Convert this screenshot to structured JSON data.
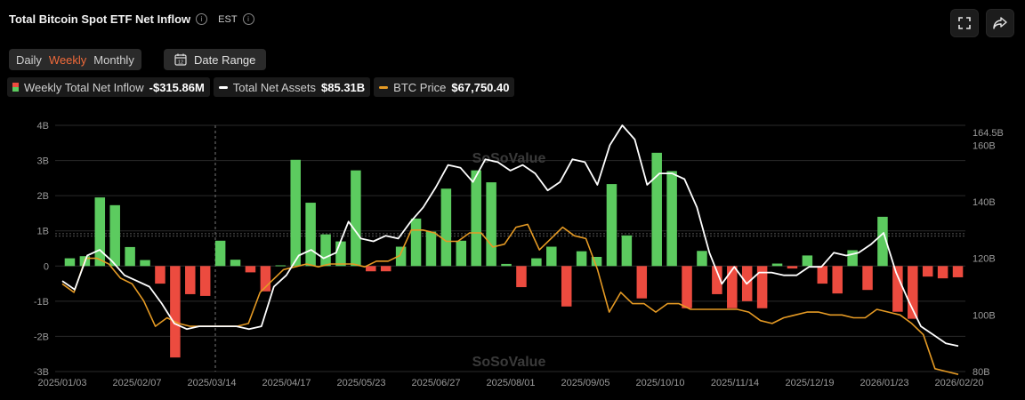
{
  "header": {
    "title": "Total Bitcoin Spot ETF Net Inflow",
    "timezone": "EST",
    "fullscreen_icon": "fullscreen-icon",
    "share_icon": "share-icon"
  },
  "controls": {
    "periods": [
      "Daily",
      "Weekly",
      "Monthly"
    ],
    "active_period": "Weekly",
    "date_range_label": "Date Range",
    "calendar_icon_text": "12"
  },
  "legend": {
    "inflow_label": "Weekly Total Net Inflow",
    "inflow_value": "-$315.86M",
    "assets_label": "Total Net Assets",
    "assets_value": "$85.31B",
    "btc_label": "BTC Price",
    "btc_value": "$67,750.40"
  },
  "watermark": "SoSoValue",
  "colors": {
    "positive": "#5ccb5f",
    "negative": "#ec4b3f",
    "assets_line": "#ffffff",
    "btc_line": "#e59a24",
    "active_tab": "#f06a3a"
  },
  "chart_data": {
    "type": "bar",
    "title": "Total Bitcoin Spot ETF Net Inflow",
    "x_tick_labels": [
      "2025/01/03",
      "2025/02/07",
      "2025/03/14",
      "2025/04/17",
      "2025/05/23",
      "2025/06/27",
      "2025/08/01",
      "2025/09/05",
      "2025/10/10",
      "2025/11/14",
      "2025/12/19",
      "2026/01/23",
      "2026/02/20"
    ],
    "left_axis": {
      "ticks": [
        "4B",
        "3B",
        "2B",
        "1B",
        "0",
        "-1B",
        "-2B",
        "-3B"
      ],
      "ylim": [
        -3,
        4
      ],
      "unit": "B USD"
    },
    "right_axis": {
      "ticks": [
        "164.5B",
        "160B",
        "140B",
        "120B",
        "100B",
        "80B"
      ],
      "ylim": [
        80,
        167
      ],
      "unit": "B USD"
    },
    "series": [
      {
        "name": "Weekly Total Net Inflow",
        "type": "bar",
        "unit": "B USD",
        "values": [
          0.22,
          0.28,
          1.95,
          1.73,
          0.54,
          0.17,
          -0.5,
          -2.6,
          -0.8,
          -0.85,
          0.72,
          0.18,
          -0.18,
          -0.72,
          0.02,
          3.02,
          1.8,
          0.9,
          0.7,
          2.72,
          -0.15,
          -0.15,
          0.55,
          1.35,
          0.98,
          2.2,
          0.72,
          2.72,
          2.38,
          0.06,
          -0.6,
          0.22,
          0.55,
          -1.15,
          0.42,
          0.26,
          2.33,
          0.87,
          -0.92,
          3.22,
          2.7,
          -1.2,
          0.43,
          -0.8,
          -1.2,
          -1.0,
          -1.2,
          0.07,
          -0.07,
          0.3,
          -0.5,
          -0.78,
          0.45,
          -0.68,
          1.4,
          -1.3,
          -1.5,
          -0.3,
          -0.35,
          -0.32
        ]
      },
      {
        "name": "Total Net Assets",
        "type": "line",
        "unit": "B USD",
        "values": [
          112,
          109,
          121,
          123,
          119,
          114,
          112,
          110,
          104,
          97,
          95,
          96,
          96,
          96,
          96,
          95,
          96,
          110,
          114,
          121,
          123,
          120,
          122,
          133,
          127,
          126,
          128,
          127,
          133,
          138,
          145,
          153,
          152,
          147,
          155,
          154,
          151,
          153,
          150,
          144,
          147,
          155,
          154,
          146,
          160,
          167,
          162,
          146,
          150,
          150,
          148,
          138,
          122,
          111,
          117,
          111,
          115,
          115,
          114,
          114,
          117,
          117,
          122,
          121,
          122,
          125,
          129,
          115,
          105,
          96,
          93,
          90,
          89
        ]
      },
      {
        "name": "BTC Price",
        "type": "line",
        "unit": "B USD (axis)",
        "values": [
          111,
          108,
          120,
          120,
          118,
          113,
          111,
          105,
          96,
          99,
          97,
          96,
          96,
          96,
          96,
          96,
          97,
          108,
          112,
          116,
          117,
          118,
          117,
          118,
          118,
          118,
          117,
          119,
          119,
          121,
          130,
          130,
          129,
          126,
          126,
          129,
          129,
          124,
          125,
          131,
          132,
          123,
          127,
          131,
          128,
          127,
          116,
          101,
          108,
          104,
          104,
          101,
          104,
          104,
          102,
          102,
          102,
          102,
          102,
          101,
          98,
          97,
          99,
          100,
          101,
          101,
          100,
          100,
          99,
          99,
          102,
          101,
          100,
          97,
          93,
          81,
          80,
          79
        ]
      }
    ]
  }
}
